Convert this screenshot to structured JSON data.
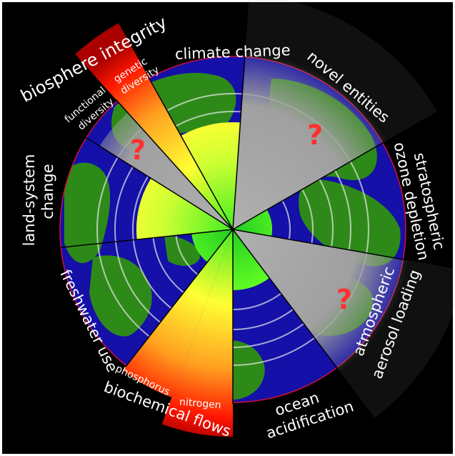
{
  "colors": {
    "background": "#000000",
    "frame": "#ffffff",
    "ocean": "#1410a8",
    "land": "#2e8a18",
    "unknown_zone": "#a0a0a0",
    "safe_zone": "#44ee22",
    "caution_zone": "#ffff33",
    "danger_zone": "#ff1500",
    "question_mark": "#ff3030",
    "planet_rim": "#d0103c"
  },
  "labels": {
    "biosphere_integrity": "biosphere integrity",
    "functional_line1": "functional",
    "functional_line2": "diversity",
    "genetic_line1": "genetic",
    "genetic_line2": "diversity",
    "climate_change": "climate change",
    "novel_entities": "novel entities",
    "stratospheric": "stratospheric",
    "ozone_depletion": "ozone depletion",
    "atmospheric": "atmospheric",
    "aerosol_loading": "aerosol loading",
    "ocean": "ocean",
    "acidification": "acidification",
    "biochemical_flows": "biochemical flows",
    "phosphorus": "phosphorus",
    "nitrogen": "nitrogen",
    "freshwater_use": "freshwater use",
    "land_system_line1": "land-system",
    "land_system_line2": "change",
    "unknown_mark": "?"
  },
  "wedges": [
    {
      "id": "climate-change",
      "status": "increasing risk",
      "level": "beyond boundary"
    },
    {
      "id": "novel-entities",
      "status": "not yet quantified"
    },
    {
      "id": "stratospheric-ozone-depletion",
      "status": "safe"
    },
    {
      "id": "atmospheric-aerosol-loading",
      "status": "not yet quantified"
    },
    {
      "id": "ocean-acidification",
      "status": "safe"
    },
    {
      "id": "biochemical-flows-nitrogen",
      "status": "high risk"
    },
    {
      "id": "biochemical-flows-phosphorus",
      "status": "high risk"
    },
    {
      "id": "freshwater-use",
      "status": "safe"
    },
    {
      "id": "land-system-change",
      "status": "increasing risk"
    },
    {
      "id": "biosphere-integrity-functional",
      "status": "not yet quantified"
    },
    {
      "id": "biosphere-integrity-genetic",
      "status": "high risk"
    }
  ]
}
